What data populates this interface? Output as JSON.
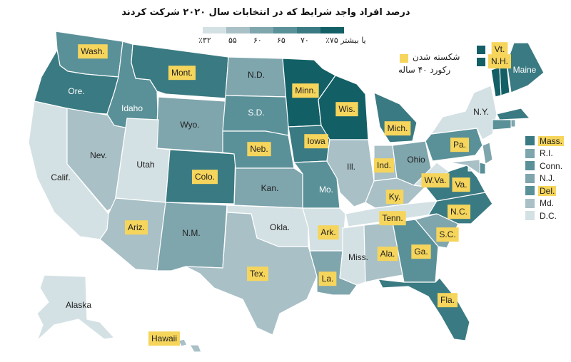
{
  "title": "درصد افراد واجد شرایط که در انتخابات سال ۲۰۲۰ شرکت کردند",
  "legend": {
    "colors": [
      "#d4e1e4",
      "#a8c0c6",
      "#7fa5ad",
      "#5a9199",
      "#3a7a82",
      "#135f66"
    ],
    "labels": [
      "٪۳۲",
      "۵۵",
      "۶۰",
      "۶۵",
      "۷۰",
      "٪۷۵ یا بیشتر"
    ],
    "broken_record_color": "#f6d55c",
    "broken_record_line1": "شکسته شدن",
    "broken_record_line2": "رکورد ۴۰ ساله"
  },
  "highlight_color": "#f6d55c",
  "states": [
    {
      "name": "Wash.",
      "bin": 3,
      "highlight": true
    },
    {
      "name": "Ore.",
      "bin": 4,
      "highlight": false
    },
    {
      "name": "Calif.",
      "bin": 0,
      "highlight": false
    },
    {
      "name": "Nev.",
      "bin": 1,
      "highlight": false
    },
    {
      "name": "Idaho",
      "bin": 3,
      "highlight": false
    },
    {
      "name": "Mont.",
      "bin": 4,
      "highlight": true
    },
    {
      "name": "Wyo.",
      "bin": 2,
      "highlight": false
    },
    {
      "name": "Utah",
      "bin": 0,
      "highlight": false
    },
    {
      "name": "Colo.",
      "bin": 4,
      "highlight": true
    },
    {
      "name": "Ariz.",
      "bin": 1,
      "highlight": true
    },
    {
      "name": "N.M.",
      "bin": 2,
      "highlight": false
    },
    {
      "name": "N.D.",
      "bin": 2,
      "highlight": false
    },
    {
      "name": "S.D.",
      "bin": 3,
      "highlight": false
    },
    {
      "name": "Neb.",
      "bin": 3,
      "highlight": true
    },
    {
      "name": "Kan.",
      "bin": 2,
      "highlight": false
    },
    {
      "name": "Okla.",
      "bin": 0,
      "highlight": false
    },
    {
      "name": "Tex.",
      "bin": 1,
      "highlight": true
    },
    {
      "name": "Minn.",
      "bin": 5,
      "highlight": true
    },
    {
      "name": "Iowa",
      "bin": 4,
      "highlight": true
    },
    {
      "name": "Mo.",
      "bin": 3,
      "highlight": false
    },
    {
      "name": "Ark.",
      "bin": 0,
      "highlight": true
    },
    {
      "name": "La.",
      "bin": 2,
      "highlight": true
    },
    {
      "name": "Wis.",
      "bin": 5,
      "highlight": true
    },
    {
      "name": "Ill.",
      "bin": 1,
      "highlight": false
    },
    {
      "name": "Mich.",
      "bin": 4,
      "highlight": true
    },
    {
      "name": "Ind.",
      "bin": 1,
      "highlight": true
    },
    {
      "name": "Ohio",
      "bin": 2,
      "highlight": false
    },
    {
      "name": "Ky.",
      "bin": 1,
      "highlight": true
    },
    {
      "name": "Tenn.",
      "bin": 0,
      "highlight": true
    },
    {
      "name": "Miss.",
      "bin": 0,
      "highlight": false
    },
    {
      "name": "Ala.",
      "bin": 1,
      "highlight": true
    },
    {
      "name": "Ga.",
      "bin": 3,
      "highlight": true
    },
    {
      "name": "Fla.",
      "bin": 4,
      "highlight": true
    },
    {
      "name": "S.C.",
      "bin": 2,
      "highlight": true
    },
    {
      "name": "N.C.",
      "bin": 4,
      "highlight": true
    },
    {
      "name": "Va.",
      "bin": 4,
      "highlight": true
    },
    {
      "name": "W.Va.",
      "bin": 0,
      "highlight": true
    },
    {
      "name": "Pa.",
      "bin": 3,
      "highlight": true
    },
    {
      "name": "N.Y.",
      "bin": 0,
      "highlight": false
    },
    {
      "name": "Vt.",
      "bin": 5,
      "highlight": true
    },
    {
      "name": "N.H.",
      "bin": 5,
      "highlight": true
    },
    {
      "name": "Maine",
      "bin": 4,
      "highlight": false
    },
    {
      "name": "Alaska",
      "bin": 0,
      "highlight": false
    },
    {
      "name": "Hawaii",
      "bin": 1,
      "highlight": true
    }
  ],
  "side_legend": [
    {
      "name": "Mass.",
      "bin": 4,
      "highlight": true
    },
    {
      "name": "R.I.",
      "bin": 2,
      "highlight": false
    },
    {
      "name": "Conn.",
      "bin": 3,
      "highlight": false
    },
    {
      "name": "N.J.",
      "bin": 2,
      "highlight": false
    },
    {
      "name": "Del.",
      "bin": 3,
      "highlight": true
    },
    {
      "name": "Md.",
      "bin": 1,
      "highlight": false
    },
    {
      "name": "D.C.",
      "bin": 0,
      "highlight": false
    }
  ]
}
